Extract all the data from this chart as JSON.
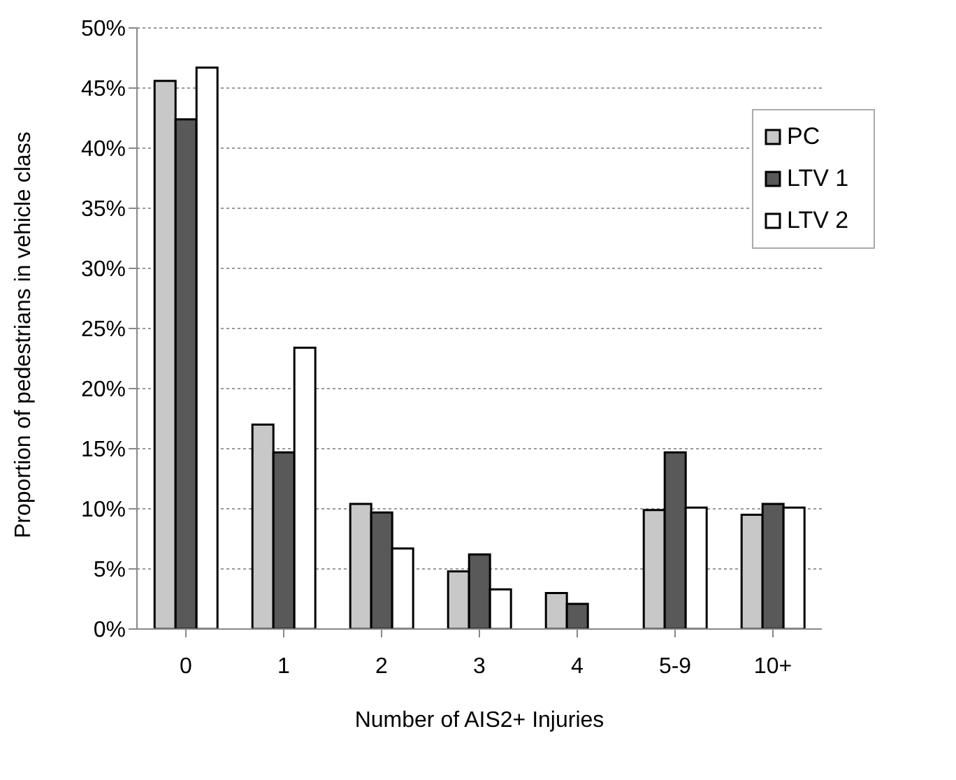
{
  "chart_data": {
    "type": "bar",
    "xlabel": "Number of AIS2+ Injuries",
    "ylabel": "Proportion of pedestrians in vehicle class",
    "categories": [
      "0",
      "1",
      "2",
      "3",
      "4",
      "5-9",
      "10+"
    ],
    "series": [
      {
        "name": "PC",
        "color": "#c8c8c8",
        "values": [
          45.6,
          17.0,
          10.4,
          4.8,
          3.0,
          9.9,
          9.5
        ]
      },
      {
        "name": "LTV 1",
        "color": "#595959",
        "values": [
          42.4,
          14.7,
          9.7,
          6.2,
          2.1,
          14.7,
          10.4
        ]
      },
      {
        "name": "LTV 2",
        "color": "#ffffff",
        "values": [
          46.7,
          23.4,
          6.7,
          3.3,
          0,
          10.1,
          10.1
        ]
      }
    ],
    "ylim": [
      0,
      50
    ],
    "yticks": [
      {
        "value": 0,
        "label": "0%"
      },
      {
        "value": 5,
        "label": "5%"
      },
      {
        "value": 10,
        "label": "10%"
      },
      {
        "value": 15,
        "label": "15%"
      },
      {
        "value": 20,
        "label": "20%"
      },
      {
        "value": 25,
        "label": "25%"
      },
      {
        "value": 30,
        "label": "30%"
      },
      {
        "value": 35,
        "label": "35%"
      },
      {
        "value": 40,
        "label": "40%"
      },
      {
        "value": 45,
        "label": "45%"
      },
      {
        "value": 50,
        "label": "50%"
      }
    ],
    "grid": "y",
    "legend": "top right"
  }
}
